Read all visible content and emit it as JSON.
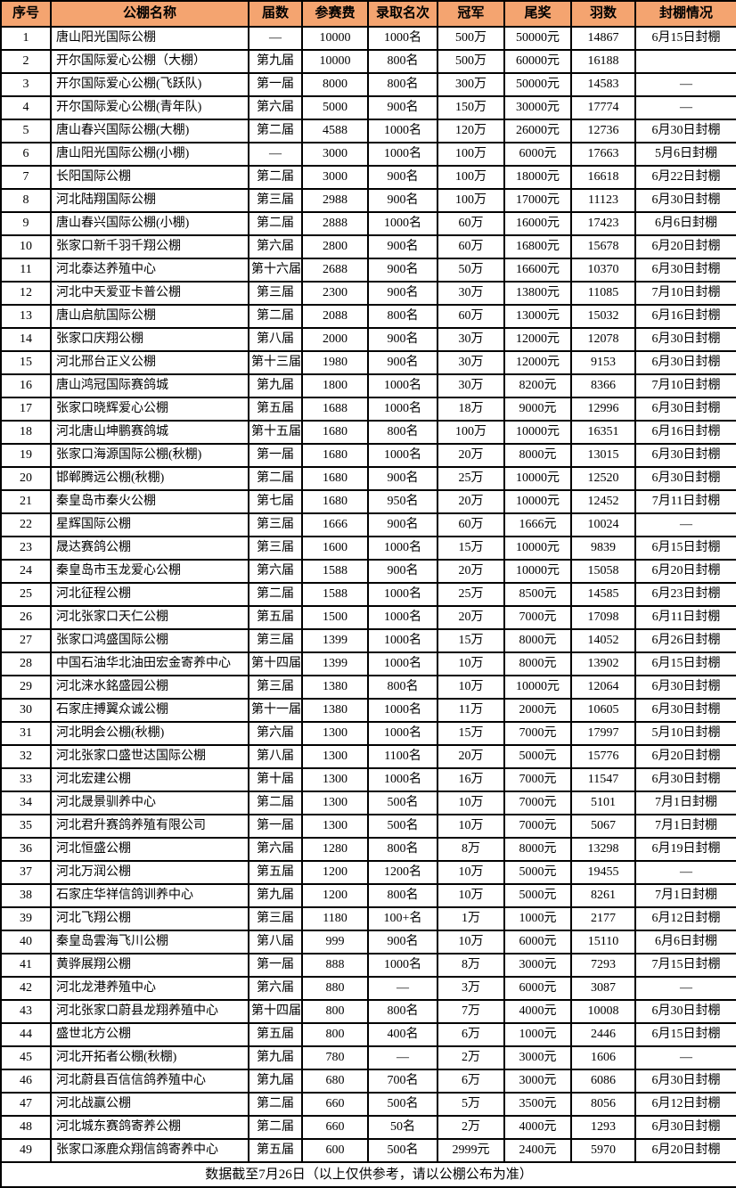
{
  "colors": {
    "header_bg": "#F4A470",
    "row_bg": "#FFFFFF",
    "border": "#000000",
    "text": "#000000"
  },
  "table": {
    "columns": [
      "序号",
      "公棚名称",
      "届数",
      "参赛费",
      "录取名次",
      "冠军",
      "尾奖",
      "羽数",
      "封棚情况"
    ],
    "rows": [
      [
        "1",
        "唐山阳光国际公棚",
        "—",
        "10000",
        "1000名",
        "500万",
        "50000元",
        "14867",
        "6月15日封棚"
      ],
      [
        "2",
        "开尔国际爱心公棚（大棚）",
        "第九届",
        "10000",
        "800名",
        "500万",
        "60000元",
        "16188",
        ""
      ],
      [
        "3",
        "开尔国际爱心公棚(飞跃队)",
        "第一届",
        "8000",
        "800名",
        "300万",
        "50000元",
        "14583",
        "—"
      ],
      [
        "4",
        "开尔国际爱心公棚(青年队)",
        "第六届",
        "5000",
        "900名",
        "150万",
        "30000元",
        "17774",
        "—"
      ],
      [
        "5",
        "唐山春兴国际公棚(大棚)",
        "第二届",
        "4588",
        "1000名",
        "120万",
        "26000元",
        "12736",
        "6月30日封棚"
      ],
      [
        "6",
        "唐山阳光国际公棚(小棚)",
        "—",
        "3000",
        "1000名",
        "100万",
        "6000元",
        "17663",
        "5月6日封棚"
      ],
      [
        "7",
        "长阳国际公棚",
        "第二届",
        "3000",
        "900名",
        "100万",
        "18000元",
        "16618",
        "6月22日封棚"
      ],
      [
        "8",
        "河北陆翔国际公棚",
        "第三届",
        "2988",
        "900名",
        "100万",
        "17000元",
        "11123",
        "6月30日封棚"
      ],
      [
        "9",
        "唐山春兴国际公棚(小棚)",
        "第二届",
        "2888",
        "1000名",
        "60万",
        "16000元",
        "17423",
        "6月6日封棚"
      ],
      [
        "10",
        "张家口新千羽千翔公棚",
        "第六届",
        "2800",
        "900名",
        "60万",
        "16800元",
        "15678",
        "6月20日封棚"
      ],
      [
        "11",
        "河北泰达养殖中心",
        "第十六届",
        "2688",
        "900名",
        "50万",
        "16600元",
        "10370",
        "6月30日封棚"
      ],
      [
        "12",
        "河北中天爱亚卡普公棚",
        "第三届",
        "2300",
        "900名",
        "30万",
        "13800元",
        "11085",
        "7月10日封棚"
      ],
      [
        "13",
        "唐山启航国际公棚",
        "第二届",
        "2088",
        "800名",
        "60万",
        "13000元",
        "15032",
        "6月16日封棚"
      ],
      [
        "14",
        "张家口庆翔公棚",
        "第八届",
        "2000",
        "900名",
        "30万",
        "12000元",
        "12078",
        "6月30日封棚"
      ],
      [
        "15",
        "河北邢台正义公棚",
        "第十三届",
        "1980",
        "900名",
        "30万",
        "12000元",
        "9153",
        "6月30日封棚"
      ],
      [
        "16",
        "唐山鸿冠国际赛鸽城",
        "第九届",
        "1800",
        "1000名",
        "30万",
        "8200元",
        "8366",
        "7月10日封棚"
      ],
      [
        "17",
        "张家口晓辉爱心公棚",
        "第五届",
        "1688",
        "1000名",
        "18万",
        "9000元",
        "12996",
        "6月30日封棚"
      ],
      [
        "18",
        "河北唐山坤鹏赛鸽城",
        "第十五届",
        "1680",
        "800名",
        "100万",
        "10000元",
        "16351",
        "6月16日封棚"
      ],
      [
        "19",
        "张家口海源国际公棚(秋棚)",
        "第一届",
        "1680",
        "1000名",
        "20万",
        "8000元",
        "13015",
        "6月30日封棚"
      ],
      [
        "20",
        "邯郸腾远公棚(秋棚)",
        "第二届",
        "1680",
        "900名",
        "25万",
        "10000元",
        "12520",
        "6月30日封棚"
      ],
      [
        "21",
        "秦皇岛市秦火公棚",
        "第七届",
        "1680",
        "950名",
        "20万",
        "10000元",
        "12452",
        "7月11日封棚"
      ],
      [
        "22",
        "星辉国际公棚",
        "第三届",
        "1666",
        "900名",
        "60万",
        "1666元",
        "10024",
        "—"
      ],
      [
        "23",
        "晟达赛鸽公棚",
        "第三届",
        "1600",
        "1000名",
        "15万",
        "10000元",
        "9839",
        "6月15日封棚"
      ],
      [
        "24",
        "秦皇岛市玉龙爱心公棚",
        "第六届",
        "1588",
        "900名",
        "20万",
        "10000元",
        "15058",
        "6月20日封棚"
      ],
      [
        "25",
        "河北征程公棚",
        "第二届",
        "1588",
        "1000名",
        "25万",
        "8500元",
        "14585",
        "6月23日封棚"
      ],
      [
        "26",
        "河北张家口天仁公棚",
        "第五届",
        "1500",
        "1000名",
        "20万",
        "7000元",
        "17098",
        "6月11日封棚"
      ],
      [
        "27",
        "张家口鸿盛国际公棚",
        "第三届",
        "1399",
        "1000名",
        "15万",
        "8000元",
        "14052",
        "6月26日封棚"
      ],
      [
        "28",
        "中国石油华北油田宏金寄养中心",
        "第十四届",
        "1399",
        "1000名",
        "10万",
        "8000元",
        "13902",
        "6月15日封棚"
      ],
      [
        "29",
        "河北涞水銘盛园公棚",
        "第三届",
        "1380",
        "800名",
        "10万",
        "10000元",
        "12064",
        "6月30日封棚"
      ],
      [
        "30",
        "石家庄搏翼众诚公棚",
        "第十一届",
        "1380",
        "1000名",
        "11万",
        "2000元",
        "10605",
        "6月30日封棚"
      ],
      [
        "31",
        "河北明会公棚(秋棚)",
        "第六届",
        "1300",
        "1000名",
        "15万",
        "7000元",
        "17997",
        "5月10日封棚"
      ],
      [
        "32",
        "河北张家口盛世达国际公棚",
        "第八届",
        "1300",
        "1100名",
        "20万",
        "5000元",
        "15776",
        "6月20日封棚"
      ],
      [
        "33",
        "河北宏建公棚",
        "第十届",
        "1300",
        "1000名",
        "16万",
        "7000元",
        "11547",
        "6月30日封棚"
      ],
      [
        "34",
        "河北晟景驯养中心",
        "第二届",
        "1300",
        "500名",
        "10万",
        "7000元",
        "5101",
        "7月1日封棚"
      ],
      [
        "35",
        "河北君升赛鸽养殖有限公司",
        "第一届",
        "1300",
        "500名",
        "10万",
        "7000元",
        "5067",
        "7月1日封棚"
      ],
      [
        "36",
        "河北恒盛公棚",
        "第六届",
        "1280",
        "800名",
        "8万",
        "8000元",
        "13298",
        "6月19日封棚"
      ],
      [
        "37",
        "河北万润公棚",
        "第五届",
        "1200",
        "1200名",
        "10万",
        "5000元",
        "19455",
        "—"
      ],
      [
        "38",
        "石家庄华祥信鸽训养中心",
        "第九届",
        "1200",
        "800名",
        "10万",
        "5000元",
        "8261",
        "7月1日封棚"
      ],
      [
        "39",
        "河北飞翔公棚",
        "第三届",
        "1180",
        "100+名",
        "1万",
        "1000元",
        "2177",
        "6月12日封棚"
      ],
      [
        "40",
        "秦皇岛雲海飞川公棚",
        "第八届",
        "999",
        "900名",
        "10万",
        "6000元",
        "15110",
        "6月6日封棚"
      ],
      [
        "41",
        "黄骅展翔公棚",
        "第一届",
        "888",
        "1000名",
        "8万",
        "3000元",
        "7293",
        "7月15日封棚"
      ],
      [
        "42",
        "河北龙港养殖中心",
        "第六届",
        "880",
        "—",
        "3万",
        "6000元",
        "3087",
        "—"
      ],
      [
        "43",
        "河北张家口蔚县龙翔养殖中心",
        "第十四届",
        "800",
        "800名",
        "7万",
        "4000元",
        "10008",
        "6月30日封棚"
      ],
      [
        "44",
        "盛世北方公棚",
        "第五届",
        "800",
        "400名",
        "6万",
        "1000元",
        "2446",
        "6月15日封棚"
      ],
      [
        "45",
        "河北开拓者公棚(秋棚)",
        "第九届",
        "780",
        "—",
        "2万",
        "3000元",
        "1606",
        "—"
      ],
      [
        "46",
        "河北蔚县百信信鸽养殖中心",
        "第九届",
        "680",
        "700名",
        "6万",
        "3000元",
        "6086",
        "6月30日封棚"
      ],
      [
        "47",
        "河北战赢公棚",
        "第二届",
        "660",
        "500名",
        "5万",
        "3500元",
        "8056",
        "6月12日封棚"
      ],
      [
        "48",
        "河北城东赛鸽寄养公棚",
        "第二届",
        "660",
        "50名",
        "2万",
        "4000元",
        "1293",
        "6月30日封棚"
      ],
      [
        "49",
        "张家口涿鹿众翔信鸽寄养中心",
        "第五届",
        "600",
        "500名",
        "2999元",
        "2400元",
        "5970",
        "6月20日封棚"
      ]
    ],
    "footer_note": "数据截至7月26日（以上仅供参考，请以公棚公布为准）"
  }
}
